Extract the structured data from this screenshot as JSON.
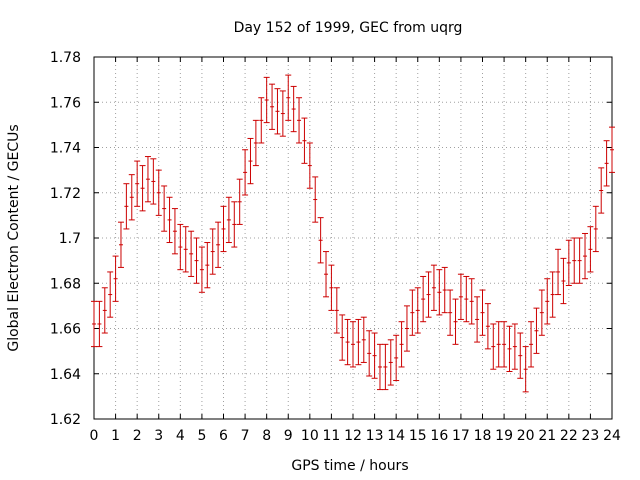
{
  "chart_data": {
    "type": "scatter",
    "title": "Day 152 of 1999, GEC from uqrg",
    "xlabel": "GPS time / hours",
    "ylabel": "Global Electron Content / GECUs",
    "xlim": [
      0,
      24
    ],
    "ylim": [
      1.62,
      1.78
    ],
    "xticks": [
      0,
      1,
      2,
      3,
      4,
      5,
      6,
      7,
      8,
      9,
      10,
      11,
      12,
      13,
      14,
      15,
      16,
      17,
      18,
      19,
      20,
      21,
      22,
      23,
      24
    ],
    "yticks": [
      1.62,
      1.64,
      1.66,
      1.68,
      1.7,
      1.72,
      1.74,
      1.76,
      1.78
    ],
    "ytick_labels": [
      "1.62",
      "1.64",
      "1.66",
      "1.68",
      "1.7",
      "1.72",
      "1.74",
      "1.76",
      "1.78"
    ],
    "grid": true,
    "error_bar": 0.01,
    "color": "#cc0000",
    "series": [
      {
        "name": "GEC",
        "x": [
          0,
          0.25,
          0.5,
          0.75,
          1,
          1.25,
          1.5,
          1.75,
          2,
          2.25,
          2.5,
          2.75,
          3,
          3.25,
          3.5,
          3.75,
          4,
          4.25,
          4.5,
          4.75,
          5,
          5.25,
          5.5,
          5.75,
          6,
          6.25,
          6.5,
          6.75,
          7,
          7.25,
          7.5,
          7.75,
          8,
          8.25,
          8.5,
          8.75,
          9,
          9.25,
          9.5,
          9.75,
          10,
          10.25,
          10.5,
          10.75,
          11,
          11.25,
          11.5,
          11.75,
          12,
          12.25,
          12.5,
          12.75,
          13,
          13.25,
          13.5,
          13.75,
          14,
          14.25,
          14.5,
          14.75,
          15,
          15.25,
          15.5,
          15.75,
          16,
          16.25,
          16.5,
          16.75,
          17,
          17.25,
          17.5,
          17.75,
          18,
          18.25,
          18.5,
          18.75,
          19,
          19.25,
          19.5,
          19.75,
          20,
          20.25,
          20.5,
          20.75,
          21,
          21.25,
          21.5,
          21.75,
          22,
          22.25,
          22.5,
          22.75,
          23,
          23.25,
          23.5,
          23.75,
          24
        ],
        "y": [
          1.662,
          1.662,
          1.668,
          1.675,
          1.682,
          1.697,
          1.714,
          1.718,
          1.724,
          1.722,
          1.726,
          1.725,
          1.72,
          1.713,
          1.708,
          1.703,
          1.696,
          1.695,
          1.693,
          1.69,
          1.686,
          1.688,
          1.694,
          1.697,
          1.704,
          1.708,
          1.706,
          1.716,
          1.729,
          1.734,
          1.742,
          1.752,
          1.761,
          1.758,
          1.756,
          1.755,
          1.762,
          1.757,
          1.752,
          1.743,
          1.732,
          1.717,
          1.699,
          1.684,
          1.678,
          1.668,
          1.656,
          1.654,
          1.653,
          1.654,
          1.655,
          1.649,
          1.648,
          1.643,
          1.643,
          1.645,
          1.647,
          1.653,
          1.66,
          1.667,
          1.668,
          1.673,
          1.675,
          1.678,
          1.676,
          1.677,
          1.667,
          1.663,
          1.674,
          1.673,
          1.672,
          1.664,
          1.667,
          1.661,
          1.652,
          1.653,
          1.653,
          1.651,
          1.652,
          1.648,
          1.642,
          1.653,
          1.659,
          1.667,
          1.672,
          1.675,
          1.685,
          1.681,
          1.689,
          1.69,
          1.69,
          1.692,
          1.695,
          1.704,
          1.721,
          1.733,
          1.739
        ]
      }
    ]
  }
}
